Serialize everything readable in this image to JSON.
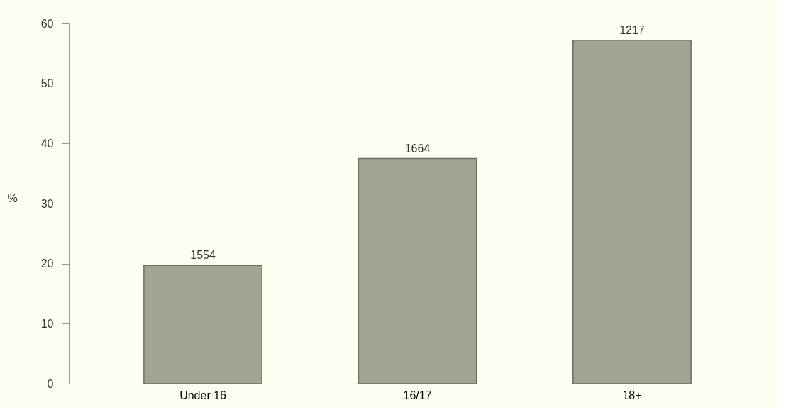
{
  "chart_data": {
    "type": "bar",
    "ylabel": "%",
    "categories": [
      "Under 16",
      "16/17",
      "18+"
    ],
    "values": [
      19.7,
      37.5,
      57.2
    ],
    "color": "#a3a593",
    "ylim": [
      0,
      60
    ],
    "yticks": [
      0,
      10,
      20,
      30,
      40,
      50,
      60
    ],
    "grid": false,
    "annotations": [
      {
        "text": "1554",
        "x": "Under 16",
        "y": 19.7
      },
      {
        "text": "1664",
        "x": "16/17",
        "y": 37.5
      },
      {
        "text": "1217",
        "x": "18+",
        "y": 57.2
      }
    ]
  }
}
